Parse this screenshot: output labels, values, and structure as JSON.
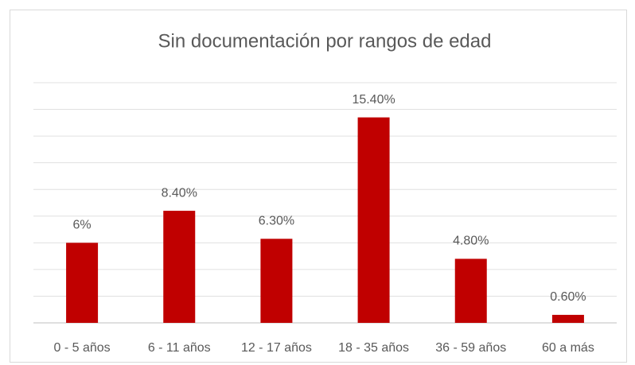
{
  "chart_data": {
    "type": "bar",
    "title": "Sin documentación por rangos de edad",
    "categories": [
      "0 - 5 años",
      "6 - 11 años",
      "12 - 17 años",
      "18 - 35 años",
      "36 - 59 años",
      "60 a más"
    ],
    "values": [
      6,
      8.4,
      6.3,
      15.4,
      4.8,
      0.6
    ],
    "value_labels": [
      "6%",
      "8.40%",
      "6.30%",
      "15.40%",
      "4.80%",
      "0.60%"
    ],
    "color": "#c00000",
    "ylim": [
      0,
      18
    ],
    "yticks": [
      0,
      2,
      4,
      6,
      8,
      10,
      12,
      14,
      16,
      18
    ],
    "grid": true
  }
}
